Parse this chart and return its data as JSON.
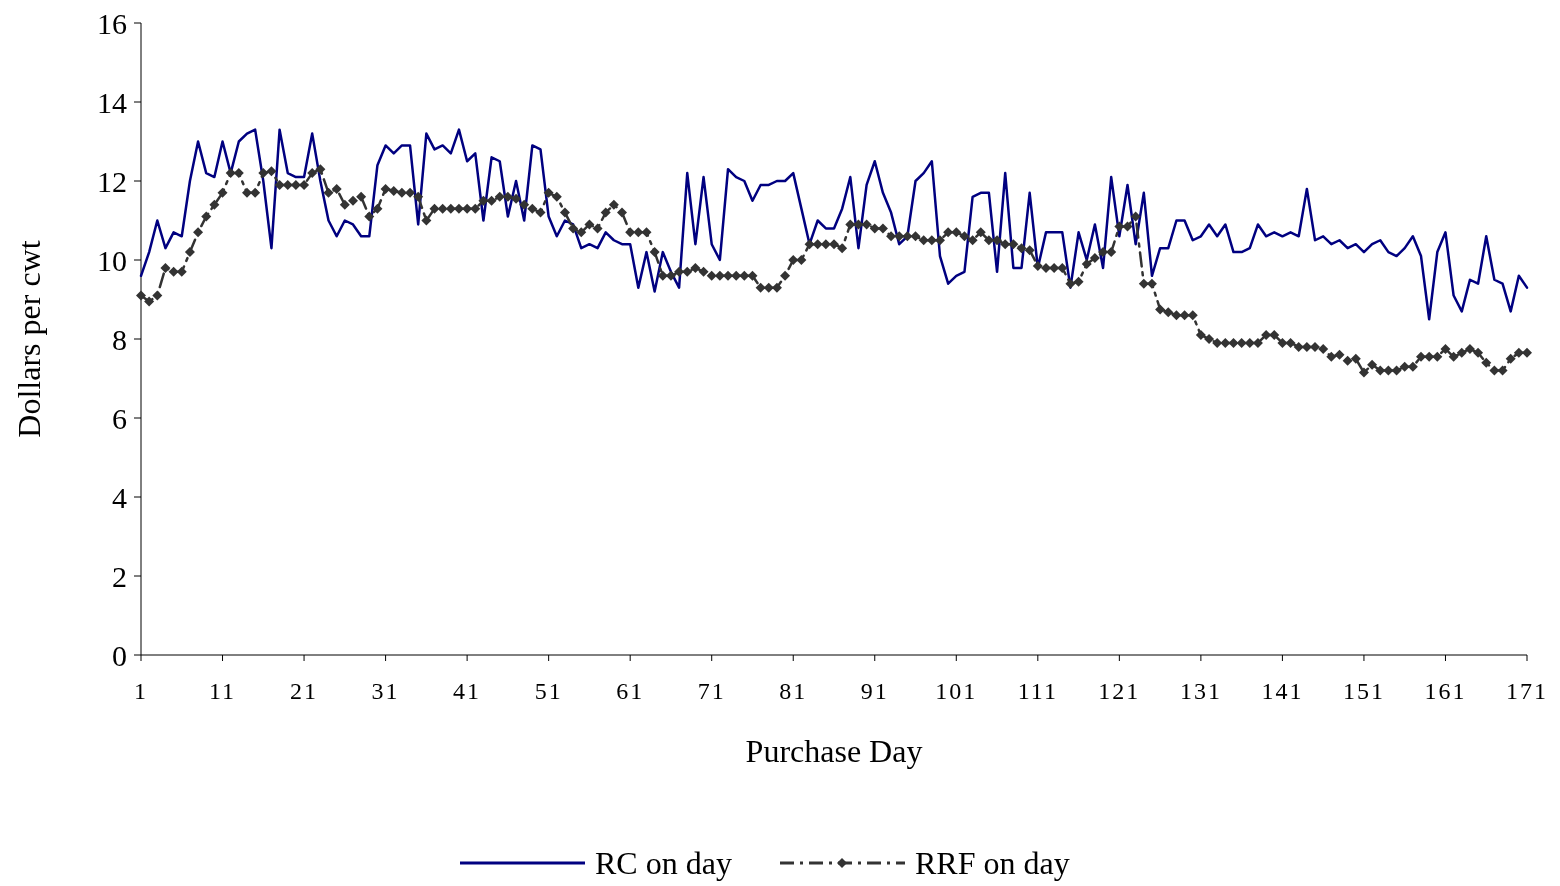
{
  "chart_data": {
    "type": "line",
    "xlabel": "Purchase Day",
    "ylabel": "Dollars per cwt",
    "x": [
      1,
      2,
      3,
      4,
      5,
      6,
      7,
      8,
      9,
      10,
      11,
      12,
      13,
      14,
      15,
      16,
      17,
      18,
      19,
      20,
      21,
      22,
      23,
      24,
      25,
      26,
      27,
      28,
      29,
      30,
      31,
      32,
      33,
      34,
      35,
      36,
      37,
      38,
      39,
      40,
      41,
      42,
      43,
      44,
      45,
      46,
      47,
      48,
      49,
      50,
      51,
      52,
      53,
      54,
      55,
      56,
      57,
      58,
      59,
      60,
      61,
      62,
      63,
      64,
      65,
      66,
      67,
      68,
      69,
      70,
      71,
      72,
      73,
      74,
      75,
      76,
      77,
      78,
      79,
      80,
      81,
      82,
      83,
      84,
      85,
      86,
      87,
      88,
      89,
      90,
      91,
      92,
      93,
      94,
      95,
      96,
      97,
      98,
      99,
      100,
      101,
      102,
      103,
      104,
      105,
      106,
      107,
      108,
      109,
      110,
      111,
      112,
      113,
      114,
      115,
      116,
      117,
      118,
      119,
      120,
      121,
      122,
      123,
      124,
      125,
      126,
      127,
      128,
      129,
      130,
      131,
      132,
      133,
      134,
      135,
      136,
      137,
      138,
      139,
      140,
      141,
      142,
      143,
      144,
      145,
      146,
      147,
      148,
      149,
      150,
      151,
      152,
      153,
      154,
      155,
      156,
      157,
      158,
      159,
      160,
      161,
      162,
      163,
      164,
      165,
      166,
      167,
      168,
      169,
      170,
      171
    ],
    "series": [
      {
        "name": "RC on day",
        "color": "#000080",
        "line_style": "solid",
        "marker": "none",
        "values": [
          9.6,
          10.2,
          11.0,
          10.3,
          10.7,
          10.6,
          12.0,
          13.0,
          12.2,
          12.1,
          13.0,
          12.2,
          13.0,
          13.2,
          13.3,
          12.0,
          10.3,
          13.3,
          12.2,
          12.1,
          12.1,
          13.2,
          12.0,
          11.0,
          10.6,
          11.0,
          10.9,
          10.6,
          10.6,
          12.4,
          12.9,
          12.7,
          12.9,
          12.9,
          10.9,
          13.2,
          12.8,
          12.9,
          12.7,
          13.3,
          12.5,
          12.7,
          11.0,
          12.6,
          12.5,
          11.1,
          12.0,
          11.0,
          12.9,
          12.8,
          11.1,
          10.6,
          11.0,
          10.9,
          10.3,
          10.4,
          10.3,
          10.7,
          10.5,
          10.4,
          10.4,
          9.3,
          10.2,
          9.2,
          10.2,
          9.7,
          9.3,
          12.2,
          10.4,
          12.1,
          10.4,
          10.0,
          12.3,
          12.1,
          12.0,
          11.5,
          11.9,
          11.9,
          12.0,
          12.0,
          12.2,
          11.3,
          10.4,
          11.0,
          10.8,
          10.8,
          11.3,
          12.1,
          10.3,
          11.9,
          12.5,
          11.7,
          11.2,
          10.4,
          10.6,
          12.0,
          12.2,
          12.5,
          10.1,
          9.4,
          9.6,
          9.7,
          11.6,
          11.7,
          11.7,
          9.7,
          12.2,
          9.8,
          9.8,
          11.7,
          9.8,
          10.7,
          10.7,
          10.7,
          9.3,
          10.7,
          10.0,
          10.9,
          9.8,
          12.1,
          10.6,
          11.9,
          10.4,
          11.7,
          9.6,
          10.3,
          10.3,
          11.0,
          11.0,
          10.5,
          10.6,
          10.9,
          10.6,
          10.9,
          10.2,
          10.2,
          10.3,
          10.9,
          10.6,
          10.7,
          10.6,
          10.7,
          10.6,
          11.8,
          10.5,
          10.6,
          10.4,
          10.5,
          10.3,
          10.4,
          10.2,
          10.4,
          10.5,
          10.2,
          10.1,
          10.3,
          10.6,
          10.1,
          8.5,
          10.2,
          10.7,
          9.1,
          8.7,
          9.5,
          9.4,
          10.6,
          9.5,
          9.4,
          8.7,
          9.6,
          9.3
        ]
      },
      {
        "name": "RRF on day",
        "color": "#333333",
        "line_style": "dashed",
        "marker": "diamond",
        "values": [
          9.1,
          8.95,
          9.1,
          9.8,
          9.7,
          9.7,
          10.2,
          10.7,
          11.1,
          11.4,
          11.7,
          12.2,
          12.2,
          11.7,
          11.7,
          12.2,
          12.25,
          11.9,
          11.9,
          11.9,
          11.9,
          12.2,
          12.3,
          11.7,
          11.8,
          11.4,
          11.5,
          11.6,
          11.1,
          11.3,
          11.8,
          11.75,
          11.7,
          11.7,
          11.6,
          11.0,
          11.3,
          11.3,
          11.3,
          11.3,
          11.3,
          11.3,
          11.5,
          11.5,
          11.6,
          11.6,
          11.55,
          11.4,
          11.3,
          11.2,
          11.7,
          11.6,
          11.2,
          10.8,
          10.7,
          10.9,
          10.8,
          11.2,
          11.4,
          11.2,
          10.7,
          10.7,
          10.7,
          10.2,
          9.6,
          9.6,
          9.7,
          9.7,
          9.8,
          9.7,
          9.6,
          9.6,
          9.6,
          9.6,
          9.6,
          9.6,
          9.3,
          9.3,
          9.3,
          9.6,
          10.0,
          10.0,
          10.4,
          10.4,
          10.4,
          10.4,
          10.3,
          10.9,
          10.9,
          10.9,
          10.8,
          10.8,
          10.6,
          10.6,
          10.6,
          10.6,
          10.5,
          10.5,
          10.5,
          10.7,
          10.7,
          10.6,
          10.5,
          10.7,
          10.5,
          10.5,
          10.4,
          10.4,
          10.3,
          10.25,
          9.85,
          9.8,
          9.8,
          9.8,
          9.4,
          9.45,
          9.9,
          10.05,
          10.2,
          10.2,
          10.85,
          10.85,
          11.1,
          9.4,
          9.4,
          8.75,
          8.68,
          8.6,
          8.6,
          8.6,
          8.1,
          8.0,
          7.9,
          7.9,
          7.9,
          7.9,
          7.9,
          7.9,
          8.1,
          8.1,
          7.9,
          7.9,
          7.8,
          7.8,
          7.8,
          7.75,
          7.55,
          7.6,
          7.45,
          7.5,
          7.15,
          7.35,
          7.2,
          7.2,
          7.2,
          7.3,
          7.3,
          7.55,
          7.55,
          7.55,
          7.75,
          7.55,
          7.65,
          7.75,
          7.65,
          7.4,
          7.2,
          7.2,
          7.5,
          7.65,
          7.65
        ]
      }
    ],
    "xlim": [
      1,
      171
    ],
    "xticks": [
      1,
      11,
      21,
      31,
      41,
      51,
      61,
      71,
      81,
      91,
      101,
      111,
      121,
      131,
      141,
      151,
      161,
      171
    ],
    "ylim": [
      0,
      16
    ],
    "yticks": [
      0,
      2,
      4,
      6,
      8,
      10,
      12,
      14,
      16
    ],
    "grid": false,
    "legend": "bottom"
  }
}
